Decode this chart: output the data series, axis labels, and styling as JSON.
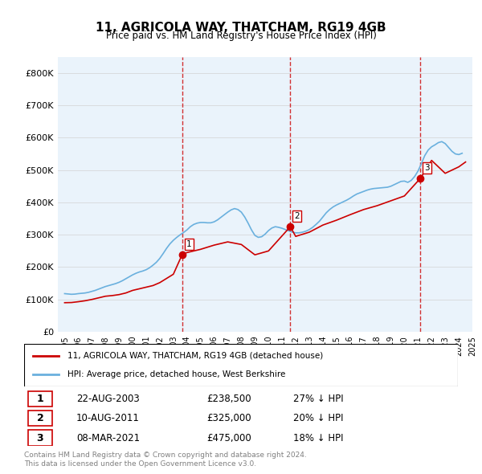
{
  "title": "11, AGRICOLA WAY, THATCHAM, RG19 4GB",
  "subtitle": "Price paid vs. HM Land Registry's House Price Index (HPI)",
  "legend_line1": "11, AGRICOLA WAY, THATCHAM, RG19 4GB (detached house)",
  "legend_line2": "HPI: Average price, detached house, West Berkshire",
  "footer1": "Contains HM Land Registry data © Crown copyright and database right 2024.",
  "footer2": "This data is licensed under the Open Government Licence v3.0.",
  "transactions": [
    {
      "num": 1,
      "date": "22-AUG-2003",
      "price": "£238,500",
      "hpi": "27% ↓ HPI",
      "x": 2003.646
    },
    {
      "num": 2,
      "date": "10-AUG-2011",
      "price": "£325,000",
      "hpi": "20% ↓ HPI",
      "x": 2011.604
    },
    {
      "num": 3,
      "date": "08-MAR-2021",
      "price": "£475,000",
      "hpi": "18% ↓ HPI",
      "x": 2021.187
    }
  ],
  "hpi_color": "#6ab0de",
  "price_color": "#cc0000",
  "vline_color": "#cc0000",
  "marker_color": "#cc0000",
  "ylim": [
    0,
    850000
  ],
  "yticks": [
    0,
    100000,
    200000,
    300000,
    400000,
    500000,
    600000,
    700000,
    800000
  ],
  "hpi_data": {
    "x": [
      1995.0,
      1995.25,
      1995.5,
      1995.75,
      1996.0,
      1996.25,
      1996.5,
      1996.75,
      1997.0,
      1997.25,
      1997.5,
      1997.75,
      1998.0,
      1998.25,
      1998.5,
      1998.75,
      1999.0,
      1999.25,
      1999.5,
      1999.75,
      2000.0,
      2000.25,
      2000.5,
      2000.75,
      2001.0,
      2001.25,
      2001.5,
      2001.75,
      2002.0,
      2002.25,
      2002.5,
      2002.75,
      2003.0,
      2003.25,
      2003.5,
      2003.75,
      2004.0,
      2004.25,
      2004.5,
      2004.75,
      2005.0,
      2005.25,
      2005.5,
      2005.75,
      2006.0,
      2006.25,
      2006.5,
      2006.75,
      2007.0,
      2007.25,
      2007.5,
      2007.75,
      2008.0,
      2008.25,
      2008.5,
      2008.75,
      2009.0,
      2009.25,
      2009.5,
      2009.75,
      2010.0,
      2010.25,
      2010.5,
      2010.75,
      2011.0,
      2011.25,
      2011.5,
      2011.75,
      2012.0,
      2012.25,
      2012.5,
      2012.75,
      2013.0,
      2013.25,
      2013.5,
      2013.75,
      2014.0,
      2014.25,
      2014.5,
      2014.75,
      2015.0,
      2015.25,
      2015.5,
      2015.75,
      2016.0,
      2016.25,
      2016.5,
      2016.75,
      2017.0,
      2017.25,
      2017.5,
      2017.75,
      2018.0,
      2018.25,
      2018.5,
      2018.75,
      2019.0,
      2019.25,
      2019.5,
      2019.75,
      2020.0,
      2020.25,
      2020.5,
      2020.75,
      2021.0,
      2021.25,
      2021.5,
      2021.75,
      2022.0,
      2022.25,
      2022.5,
      2022.75,
      2023.0,
      2023.25,
      2023.5,
      2023.75,
      2024.0,
      2024.25
    ],
    "y": [
      118000,
      117000,
      116000,
      116500,
      118000,
      119000,
      120000,
      122000,
      125000,
      128000,
      132000,
      136000,
      140000,
      143000,
      146000,
      149000,
      153000,
      158000,
      164000,
      170000,
      176000,
      181000,
      185000,
      188000,
      192000,
      198000,
      206000,
      215000,
      227000,
      242000,
      258000,
      272000,
      283000,
      292000,
      300000,
      307000,
      315000,
      325000,
      332000,
      336000,
      338000,
      338000,
      337000,
      337000,
      340000,
      346000,
      354000,
      362000,
      370000,
      377000,
      381000,
      378000,
      370000,
      355000,
      336000,
      315000,
      298000,
      292000,
      294000,
      302000,
      313000,
      321000,
      325000,
      323000,
      320000,
      316000,
      312000,
      308000,
      306000,
      306000,
      308000,
      311000,
      316000,
      323000,
      332000,
      342000,
      355000,
      368000,
      378000,
      386000,
      392000,
      397000,
      402000,
      407000,
      413000,
      420000,
      426000,
      430000,
      434000,
      438000,
      441000,
      443000,
      444000,
      445000,
      446000,
      447000,
      450000,
      455000,
      460000,
      465000,
      466000,
      462000,
      468000,
      480000,
      497000,
      520000,
      545000,
      562000,
      572000,
      578000,
      585000,
      588000,
      582000,
      570000,
      558000,
      550000,
      548000,
      552000
    ]
  },
  "price_data": {
    "x": [
      1995.0,
      1995.5,
      1996.0,
      1996.5,
      1997.0,
      1997.5,
      1998.0,
      1998.5,
      1999.0,
      1999.5,
      2000.0,
      2000.5,
      2001.0,
      2001.5,
      2002.0,
      2002.5,
      2003.0,
      2003.646,
      2004.0,
      2005.0,
      2006.0,
      2007.0,
      2008.0,
      2009.0,
      2010.0,
      2011.604,
      2012.0,
      2013.0,
      2014.0,
      2015.0,
      2016.0,
      2017.0,
      2018.0,
      2019.0,
      2020.0,
      2021.187,
      2022.0,
      2023.0,
      2024.0,
      2024.5
    ],
    "y": [
      90000,
      90500,
      93000,
      96000,
      100000,
      105000,
      110000,
      112000,
      115000,
      120000,
      128000,
      133000,
      138000,
      143000,
      152000,
      165000,
      178000,
      238500,
      245000,
      255000,
      268000,
      278000,
      270000,
      238000,
      250000,
      325000,
      295000,
      308000,
      330000,
      345000,
      362000,
      378000,
      390000,
      405000,
      420000,
      475000,
      530000,
      490000,
      510000,
      525000
    ]
  }
}
